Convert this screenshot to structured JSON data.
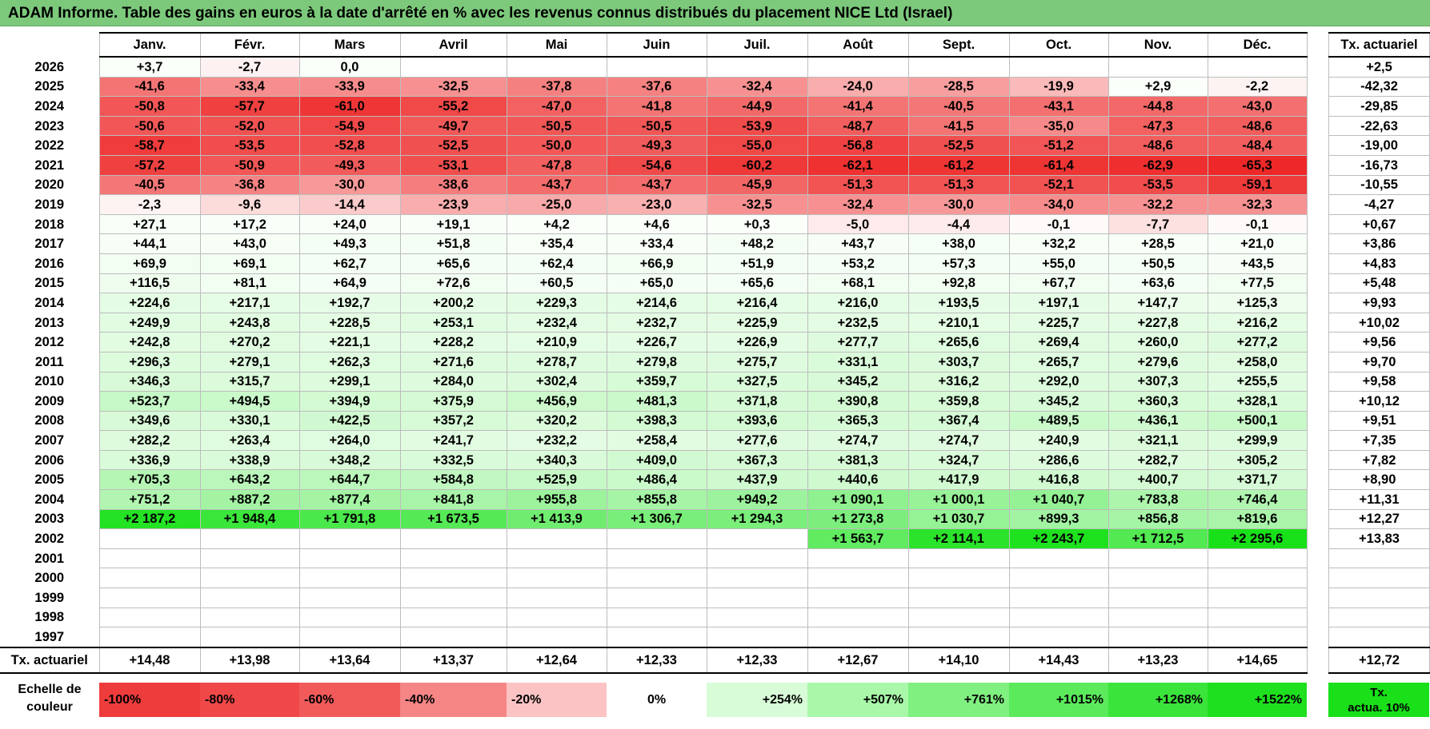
{
  "title": "ADAM Informe. Table des gains en euros à la date d'arrêté en % avec les revenus connus distribués du placement NICE Ltd (Israel)",
  "months": [
    "Janv.",
    "Févr.",
    "Mars",
    "Avril",
    "Mai",
    "Juin",
    "Juil.",
    "Août",
    "Sept.",
    "Oct.",
    "Nov.",
    "Déc."
  ],
  "rate_header": "Tx. actuariel",
  "rows": [
    {
      "year": "2026",
      "values": [
        "+3,7",
        "-2,7",
        "0,0",
        "",
        "",
        "",
        "",
        "",
        "",
        "",
        "",
        ""
      ],
      "rate": "+2,5"
    },
    {
      "year": "2025",
      "values": [
        "-41,6",
        "-33,4",
        "-33,9",
        "-32,5",
        "-37,8",
        "-37,6",
        "-32,4",
        "-24,0",
        "-28,5",
        "-19,9",
        "+2,9",
        "-2,2"
      ],
      "rate": "-42,32"
    },
    {
      "year": "2024",
      "values": [
        "-50,8",
        "-57,7",
        "-61,0",
        "-55,2",
        "-47,0",
        "-41,8",
        "-44,9",
        "-41,4",
        "-40,5",
        "-43,1",
        "-44,8",
        "-43,0"
      ],
      "rate": "-29,85"
    },
    {
      "year": "2023",
      "values": [
        "-50,6",
        "-52,0",
        "-54,9",
        "-49,7",
        "-50,5",
        "-50,5",
        "-53,9",
        "-48,7",
        "-41,5",
        "-35,0",
        "-47,3",
        "-48,6"
      ],
      "rate": "-22,63"
    },
    {
      "year": "2022",
      "values": [
        "-58,7",
        "-53,5",
        "-52,8",
        "-52,5",
        "-50,0",
        "-49,3",
        "-55,0",
        "-56,8",
        "-52,5",
        "-51,2",
        "-48,6",
        "-48,4"
      ],
      "rate": "-19,00"
    },
    {
      "year": "2021",
      "values": [
        "-57,2",
        "-50,9",
        "-49,3",
        "-53,1",
        "-47,8",
        "-54,6",
        "-60,2",
        "-62,1",
        "-61,2",
        "-61,4",
        "-62,9",
        "-65,3"
      ],
      "rate": "-16,73"
    },
    {
      "year": "2020",
      "values": [
        "-40,5",
        "-36,8",
        "-30,0",
        "-38,6",
        "-43,7",
        "-43,7",
        "-45,9",
        "-51,3",
        "-51,3",
        "-52,1",
        "-53,5",
        "-59,1"
      ],
      "rate": "-10,55"
    },
    {
      "year": "2019",
      "values": [
        "-2,3",
        "-9,6",
        "-14,4",
        "-23,9",
        "-25,0",
        "-23,0",
        "-32,5",
        "-32,4",
        "-30,0",
        "-34,0",
        "-32,2",
        "-32,3"
      ],
      "rate": "-4,27"
    },
    {
      "year": "2018",
      "values": [
        "+27,1",
        "+17,2",
        "+24,0",
        "+19,1",
        "+4,2",
        "+4,6",
        "+0,3",
        "-5,0",
        "-4,4",
        "-0,1",
        "-7,7",
        "-0,1"
      ],
      "rate": "+0,67"
    },
    {
      "year": "2017",
      "values": [
        "+44,1",
        "+43,0",
        "+49,3",
        "+51,8",
        "+35,4",
        "+33,4",
        "+48,2",
        "+43,7",
        "+38,0",
        "+32,2",
        "+28,5",
        "+21,0"
      ],
      "rate": "+3,86"
    },
    {
      "year": "2016",
      "values": [
        "+69,9",
        "+69,1",
        "+62,7",
        "+65,6",
        "+62,4",
        "+66,9",
        "+51,9",
        "+53,2",
        "+57,3",
        "+55,0",
        "+50,5",
        "+43,5"
      ],
      "rate": "+4,83"
    },
    {
      "year": "2015",
      "values": [
        "+116,5",
        "+81,1",
        "+64,9",
        "+72,6",
        "+60,5",
        "+65,0",
        "+65,6",
        "+68,1",
        "+92,8",
        "+67,7",
        "+63,6",
        "+77,5"
      ],
      "rate": "+5,48"
    },
    {
      "year": "2014",
      "values": [
        "+224,6",
        "+217,1",
        "+192,7",
        "+200,2",
        "+229,3",
        "+214,6",
        "+216,4",
        "+216,0",
        "+193,5",
        "+197,1",
        "+147,7",
        "+125,3"
      ],
      "rate": "+9,93"
    },
    {
      "year": "2013",
      "values": [
        "+249,9",
        "+243,8",
        "+228,5",
        "+253,1",
        "+232,4",
        "+232,7",
        "+225,9",
        "+232,5",
        "+210,1",
        "+225,7",
        "+227,8",
        "+216,2"
      ],
      "rate": "+10,02"
    },
    {
      "year": "2012",
      "values": [
        "+242,8",
        "+270,2",
        "+221,1",
        "+228,2",
        "+210,9",
        "+226,7",
        "+226,9",
        "+277,7",
        "+265,6",
        "+269,4",
        "+260,0",
        "+277,2"
      ],
      "rate": "+9,56"
    },
    {
      "year": "2011",
      "values": [
        "+296,3",
        "+279,1",
        "+262,3",
        "+271,6",
        "+278,7",
        "+279,8",
        "+275,7",
        "+331,1",
        "+303,7",
        "+265,7",
        "+279,6",
        "+258,0"
      ],
      "rate": "+9,70"
    },
    {
      "year": "2010",
      "values": [
        "+346,3",
        "+315,7",
        "+299,1",
        "+284,0",
        "+302,4",
        "+359,7",
        "+327,5",
        "+345,2",
        "+316,2",
        "+292,0",
        "+307,3",
        "+255,5"
      ],
      "rate": "+9,58"
    },
    {
      "year": "2009",
      "values": [
        "+523,7",
        "+494,5",
        "+394,9",
        "+375,9",
        "+456,9",
        "+481,3",
        "+371,8",
        "+390,8",
        "+359,8",
        "+345,2",
        "+360,3",
        "+328,1"
      ],
      "rate": "+10,12"
    },
    {
      "year": "2008",
      "values": [
        "+349,6",
        "+330,1",
        "+422,5",
        "+357,2",
        "+320,2",
        "+398,3",
        "+393,6",
        "+365,3",
        "+367,4",
        "+489,5",
        "+436,1",
        "+500,1"
      ],
      "rate": "+9,51"
    },
    {
      "year": "2007",
      "values": [
        "+282,2",
        "+263,4",
        "+264,0",
        "+241,7",
        "+232,2",
        "+258,4",
        "+277,6",
        "+274,7",
        "+274,7",
        "+240,9",
        "+321,1",
        "+299,9"
      ],
      "rate": "+7,35"
    },
    {
      "year": "2006",
      "values": [
        "+336,9",
        "+338,9",
        "+348,2",
        "+332,5",
        "+340,3",
        "+409,0",
        "+367,3",
        "+381,3",
        "+324,7",
        "+286,6",
        "+282,7",
        "+305,2"
      ],
      "rate": "+7,82"
    },
    {
      "year": "2005",
      "values": [
        "+705,3",
        "+643,2",
        "+644,7",
        "+584,8",
        "+525,9",
        "+486,4",
        "+437,9",
        "+440,6",
        "+417,9",
        "+416,8",
        "+400,7",
        "+371,7"
      ],
      "rate": "+8,90"
    },
    {
      "year": "2004",
      "values": [
        "+751,2",
        "+887,2",
        "+877,4",
        "+841,8",
        "+955,8",
        "+855,8",
        "+949,2",
        "+1 090,1",
        "+1 000,1",
        "+1 040,7",
        "+783,8",
        "+746,4"
      ],
      "rate": "+11,31"
    },
    {
      "year": "2003",
      "values": [
        "+2 187,2",
        "+1 948,4",
        "+1 791,8",
        "+1 673,5",
        "+1 413,9",
        "+1 306,7",
        "+1 294,3",
        "+1 273,8",
        "+1 030,7",
        "+899,3",
        "+856,8",
        "+819,6"
      ],
      "rate": "+12,27"
    },
    {
      "year": "2002",
      "values": [
        "",
        "",
        "",
        "",
        "",
        "",
        "",
        "+1 563,7",
        "+2 114,1",
        "+2 243,7",
        "+1 712,5",
        "+2 295,6"
      ],
      "rate": "+13,83"
    },
    {
      "year": "2001",
      "values": [
        "",
        "",
        "",
        "",
        "",
        "",
        "",
        "",
        "",
        "",
        "",
        ""
      ],
      "rate": ""
    },
    {
      "year": "2000",
      "values": [
        "",
        "",
        "",
        "",
        "",
        "",
        "",
        "",
        "",
        "",
        "",
        ""
      ],
      "rate": ""
    },
    {
      "year": "1999",
      "values": [
        "",
        "",
        "",
        "",
        "",
        "",
        "",
        "",
        "",
        "",
        "",
        ""
      ],
      "rate": ""
    },
    {
      "year": "1998",
      "values": [
        "",
        "",
        "",
        "",
        "",
        "",
        "",
        "",
        "",
        "",
        "",
        ""
      ],
      "rate": ""
    },
    {
      "year": "1997",
      "values": [
        "",
        "",
        "",
        "",
        "",
        "",
        "",
        "",
        "",
        "",
        "",
        ""
      ],
      "rate": ""
    }
  ],
  "footer": {
    "label": "Tx. actuariel",
    "values": [
      "+14,48",
      "+13,98",
      "+13,64",
      "+13,37",
      "+12,64",
      "+12,33",
      "+12,33",
      "+12,67",
      "+14,10",
      "+14,43",
      "+13,23",
      "+14,65"
    ],
    "rate": "+12,72"
  },
  "legend": {
    "label_line1": "Echelle de",
    "label_line2": "couleur",
    "swatches": [
      {
        "label": "-100%",
        "color": "#ee3b3b",
        "align": "l"
      },
      {
        "label": "-80%",
        "color": "#f04848",
        "align": "l"
      },
      {
        "label": "-60%",
        "color": "#f25a5a",
        "align": "l"
      },
      {
        "label": "-40%",
        "color": "#f68585",
        "align": "l"
      },
      {
        "label": "-20%",
        "color": "#fbc3c3",
        "align": "l"
      },
      {
        "label": "0%",
        "color": "#ffffff",
        "align": "c"
      },
      {
        "label": "+254%",
        "color": "#d8fcd8",
        "align": "r"
      },
      {
        "label": "+507%",
        "color": "#a9f7a9",
        "align": "r"
      },
      {
        "label": "+761%",
        "color": "#80f080",
        "align": "r"
      },
      {
        "label": "+1015%",
        "color": "#5bea5b",
        "align": "r"
      },
      {
        "label": "+1268%",
        "color": "#3be43b",
        "align": "r"
      },
      {
        "label": "+1522%",
        "color": "#1ee01e",
        "align": "r"
      }
    ],
    "tx_line1": "Tx.",
    "tx_line2": "actua. 10%"
  }
}
